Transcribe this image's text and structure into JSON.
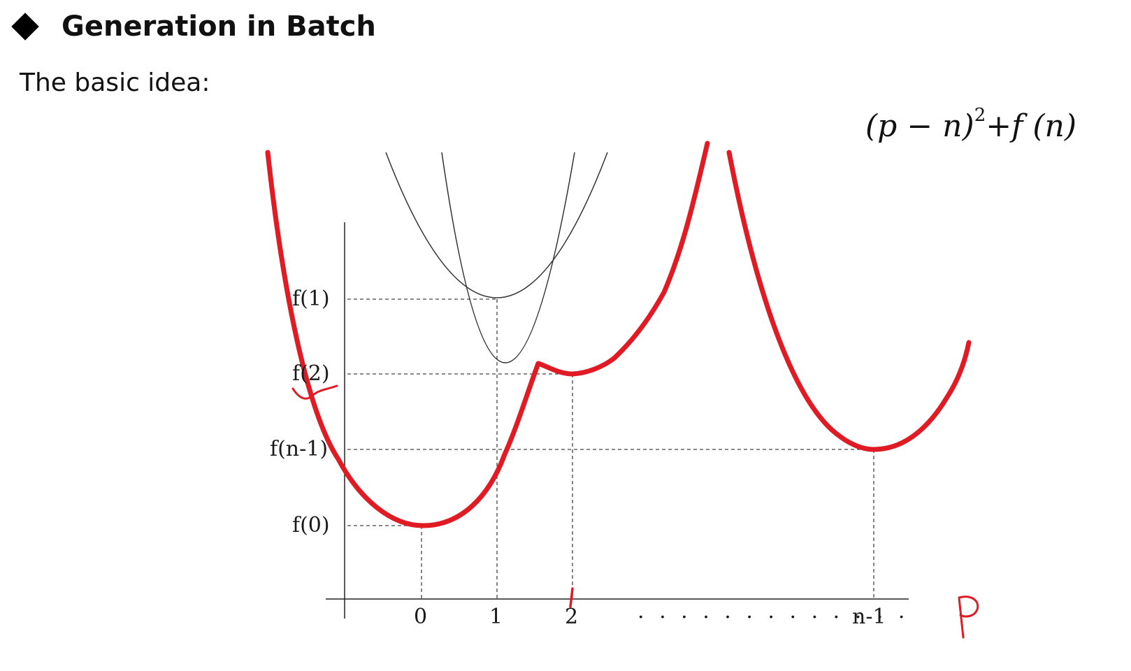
{
  "slide": {
    "title": "Generation in Batch",
    "intro": "The basic idea:",
    "formula": {
      "base": "(p − n)",
      "exponent": "2",
      "rest": "+f (n)"
    }
  },
  "diagram": {
    "y_labels": [
      "f(1)",
      "f(2)",
      "f(n-1)",
      "f(0)"
    ],
    "x_labels": [
      "0",
      "1",
      "2",
      "n-1"
    ],
    "x_ellipsis": ". . . . . . . . . . . . .",
    "handwritten_axis_label": "P",
    "colors": {
      "envelope": "#e01b24",
      "curve": "#333333",
      "axis": "#222222",
      "guide": "#444444",
      "ink": "#e01b24"
    }
  }
}
